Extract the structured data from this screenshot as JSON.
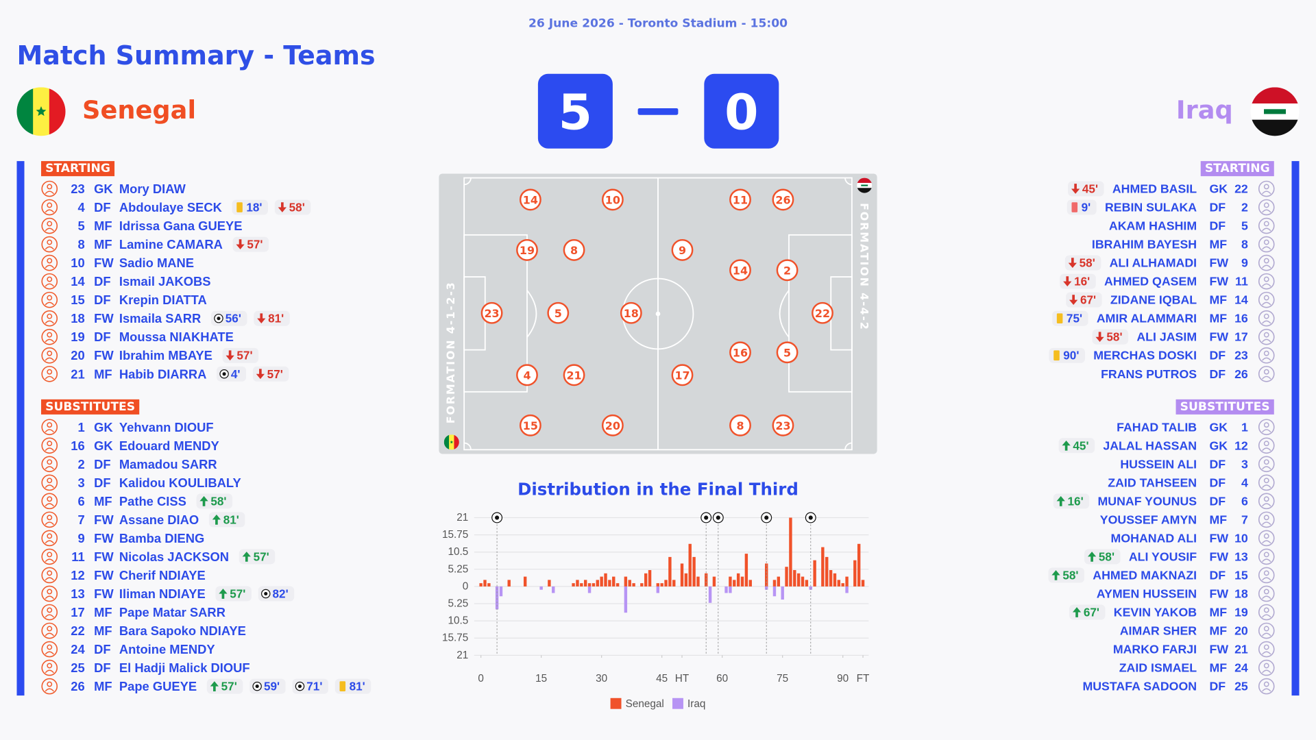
{
  "header": {
    "date_venue": "26 June 2026 - Toronto Stadium - 15:00",
    "title": "Match Summary - Teams"
  },
  "teams": [
    {
      "name": "Senegal",
      "score": "5",
      "formation": "FORMATION 4-1-2-3",
      "starting_label": "STARTING",
      "substitutes_label": "SUBSTITUTES",
      "starting": [
        {
          "number": 23,
          "position": "GK",
          "name": "Mory DIAW"
        },
        {
          "number": 4,
          "position": "DF",
          "name": "Abdoulaye SECK",
          "events": [
            {
              "type": "yellow",
              "label": "18'"
            },
            {
              "type": "off",
              "label": "58'"
            }
          ]
        },
        {
          "number": 5,
          "position": "MF",
          "name": "Idrissa Gana GUEYE"
        },
        {
          "number": 8,
          "position": "MF",
          "name": "Lamine CAMARA",
          "events": [
            {
              "type": "off",
              "label": "57'"
            }
          ]
        },
        {
          "number": 10,
          "position": "FW",
          "name": "Sadio MANE"
        },
        {
          "number": 14,
          "position": "DF",
          "name": "Ismail JAKOBS"
        },
        {
          "number": 15,
          "position": "DF",
          "name": "Krepin DIATTA"
        },
        {
          "number": 18,
          "position": "FW",
          "name": "Ismaila SARR",
          "events": [
            {
              "type": "goal",
              "label": "56'"
            },
            {
              "type": "off",
              "label": "81'"
            }
          ]
        },
        {
          "number": 19,
          "position": "DF",
          "name": "Moussa NIAKHATE"
        },
        {
          "number": 20,
          "position": "FW",
          "name": "Ibrahim MBAYE",
          "events": [
            {
              "type": "off",
              "label": "57'"
            }
          ]
        },
        {
          "number": 21,
          "position": "MF",
          "name": "Habib DIARRA",
          "events": [
            {
              "type": "goal",
              "label": "4'"
            },
            {
              "type": "off",
              "label": "57'"
            }
          ]
        }
      ],
      "substitutes": [
        {
          "number": 1,
          "position": "GK",
          "name": "Yehvann DIOUF"
        },
        {
          "number": 16,
          "position": "GK",
          "name": "Edouard MENDY"
        },
        {
          "number": 2,
          "position": "DF",
          "name": "Mamadou SARR"
        },
        {
          "number": 3,
          "position": "DF",
          "name": "Kalidou KOULIBALY"
        },
        {
          "number": 6,
          "position": "MF",
          "name": "Pathe CISS",
          "events": [
            {
              "type": "on",
              "label": "58'"
            }
          ]
        },
        {
          "number": 7,
          "position": "FW",
          "name": "Assane DIAO",
          "events": [
            {
              "type": "on",
              "label": "81'"
            }
          ]
        },
        {
          "number": 9,
          "position": "FW",
          "name": "Bamba DIENG"
        },
        {
          "number": 11,
          "position": "FW",
          "name": "Nicolas JACKSON",
          "events": [
            {
              "type": "on",
              "label": "57'"
            }
          ]
        },
        {
          "number": 12,
          "position": "FW",
          "name": "Cherif NDIAYE"
        },
        {
          "number": 13,
          "position": "FW",
          "name": "Iliman NDIAYE",
          "events": [
            {
              "type": "on",
              "label": "57'"
            },
            {
              "type": "goal",
              "label": "82'"
            }
          ]
        },
        {
          "number": 17,
          "position": "MF",
          "name": "Pape Matar SARR"
        },
        {
          "number": 22,
          "position": "MF",
          "name": "Bara Sapoko NDIAYE"
        },
        {
          "number": 24,
          "position": "DF",
          "name": "Antoine MENDY"
        },
        {
          "number": 25,
          "position": "DF",
          "name": "El Hadji Malick DIOUF"
        },
        {
          "number": 26,
          "position": "MF",
          "name": "Pape GUEYE",
          "events": [
            {
              "type": "on",
              "label": "57'"
            },
            {
              "type": "goal",
              "label": "59'"
            },
            {
              "type": "goal",
              "label": "71'"
            },
            {
              "type": "yellow",
              "label": "81'"
            }
          ]
        }
      ],
      "pitch": [
        14,
        10,
        19,
        8,
        23,
        5,
        18,
        4,
        21,
        15,
        20
      ]
    },
    {
      "name": "Iraq",
      "score": "0",
      "formation": "FORMATION 4-4-2",
      "starting_label": "STARTING",
      "substitutes_label": "SUBSTITUTES",
      "starting": [
        {
          "number": 22,
          "position": "GK",
          "name": "AHMED BASIL",
          "events": [
            {
              "type": "off",
              "label": "45'"
            }
          ]
        },
        {
          "number": 2,
          "position": "DF",
          "name": "REBIN SULAKA",
          "events": [
            {
              "type": "red",
              "label": "9'"
            }
          ]
        },
        {
          "number": 5,
          "position": "DF",
          "name": "AKAM HASHIM"
        },
        {
          "number": 8,
          "position": "MF",
          "name": "IBRAHIM BAYESH"
        },
        {
          "number": 9,
          "position": "FW",
          "name": "ALI ALHAMADI",
          "events": [
            {
              "type": "off",
              "label": "58'"
            }
          ]
        },
        {
          "number": 11,
          "position": "FW",
          "name": "AHMED QASEM",
          "events": [
            {
              "type": "off",
              "label": "16'"
            }
          ]
        },
        {
          "number": 14,
          "position": "MF",
          "name": "ZIDANE IQBAL",
          "events": [
            {
              "type": "off",
              "label": "67'"
            }
          ]
        },
        {
          "number": 16,
          "position": "MF",
          "name": "AMIR ALAMMARI",
          "events": [
            {
              "type": "yellow",
              "label": "75'"
            }
          ]
        },
        {
          "number": 17,
          "position": "FW",
          "name": "ALI JASIM",
          "events": [
            {
              "type": "off",
              "label": "58'"
            }
          ]
        },
        {
          "number": 23,
          "position": "DF",
          "name": "MERCHAS DOSKI",
          "events": [
            {
              "type": "yellow",
              "label": "90'"
            }
          ]
        },
        {
          "number": 26,
          "position": "DF",
          "name": "FRANS PUTROS"
        }
      ],
      "substitutes": [
        {
          "number": 1,
          "position": "GK",
          "name": "FAHAD TALIB"
        },
        {
          "number": 12,
          "position": "GK",
          "name": "JALAL HASSAN",
          "events": [
            {
              "type": "on",
              "label": "45'"
            }
          ]
        },
        {
          "number": 3,
          "position": "DF",
          "name": "HUSSEIN ALI"
        },
        {
          "number": 4,
          "position": "DF",
          "name": "ZAID TAHSEEN"
        },
        {
          "number": 6,
          "position": "DF",
          "name": "MUNAF YOUNUS",
          "events": [
            {
              "type": "on",
              "label": "16'"
            }
          ]
        },
        {
          "number": 7,
          "position": "MF",
          "name": "YOUSSEF AMYN"
        },
        {
          "number": 10,
          "position": "FW",
          "name": "MOHANAD ALI"
        },
        {
          "number": 13,
          "position": "FW",
          "name": "ALI YOUSIF",
          "events": [
            {
              "type": "on",
              "label": "58'"
            }
          ]
        },
        {
          "number": 15,
          "position": "DF",
          "name": "AHMED MAKNAZI",
          "events": [
            {
              "type": "on",
              "label": "58'"
            }
          ]
        },
        {
          "number": 18,
          "position": "FW",
          "name": "AYMEN HUSSEIN"
        },
        {
          "number": 19,
          "position": "MF",
          "name": "KEVIN YAKOB",
          "events": [
            {
              "type": "on",
              "label": "67'"
            }
          ]
        },
        {
          "number": 20,
          "position": "MF",
          "name": "AIMAR SHER"
        },
        {
          "number": 21,
          "position": "FW",
          "name": "MARKO FARJI"
        },
        {
          "number": 24,
          "position": "MF",
          "name": "ZAID ISMAEL"
        },
        {
          "number": 25,
          "position": "DF",
          "name": "MUSTAFA SADOON"
        }
      ],
      "pitch": [
        11,
        26,
        9,
        14,
        2,
        22,
        16,
        5,
        17,
        8,
        23
      ]
    }
  ],
  "chart_data": {
    "type": "bar",
    "title": "Distribution in the Final Third",
    "xlim": [
      0,
      96
    ],
    "xticks": [
      0,
      15,
      30,
      45,
      {
        "value": 50,
        "label": "HT"
      },
      60,
      75,
      90,
      {
        "value": 95,
        "label": "FT"
      }
    ],
    "ylim": [
      -21,
      21
    ],
    "yticks": [
      21,
      15.75,
      10.5,
      5.25,
      0,
      {
        "value": -5.25,
        "label": "5.25"
      },
      {
        "value": -10.5,
        "label": "10.5"
      },
      {
        "value": -15.75,
        "label": "15.75"
      },
      {
        "value": -21,
        "label": "21"
      }
    ],
    "grid": true,
    "legend": "bottom",
    "goals": [
      4,
      56,
      59,
      71,
      82
    ],
    "series": [
      {
        "name": "Senegal",
        "color": "#f0522a",
        "x": [
          0,
          1,
          2,
          7,
          11,
          17,
          23,
          24,
          25,
          26,
          27,
          28,
          29,
          30,
          31,
          32,
          33,
          34,
          36,
          37,
          38,
          40,
          41,
          42,
          44,
          45,
          46,
          47,
          48,
          50,
          51,
          52,
          53,
          54,
          56,
          58,
          62,
          63,
          64,
          65,
          66,
          67,
          71,
          73,
          74,
          76,
          77,
          78,
          79,
          80,
          81,
          83,
          85,
          86,
          87,
          88,
          89,
          90,
          91,
          93,
          94,
          95
        ],
        "values": [
          1,
          2,
          1,
          2,
          3,
          2,
          1,
          2,
          1,
          2,
          1,
          1,
          2,
          3,
          4,
          2,
          3,
          1,
          3,
          2,
          1,
          1,
          4,
          5,
          1,
          1,
          2,
          9,
          2,
          7,
          4,
          13,
          9,
          3,
          4,
          3,
          3,
          2,
          4,
          3,
          10,
          2,
          7,
          2,
          3,
          6,
          21,
          5,
          4,
          3,
          2,
          8,
          12,
          9,
          5,
          4,
          2,
          1,
          3,
          8,
          13,
          2
        ]
      },
      {
        "name": "Iraq",
        "color": "#b794f4",
        "x": [
          4,
          5,
          15,
          18,
          27,
          36,
          44,
          57,
          61,
          62,
          71,
          73,
          75,
          82,
          91
        ],
        "values": [
          -7,
          -3,
          -1,
          -2,
          -2,
          -8,
          -2,
          -5,
          -2,
          -2,
          -1,
          -3,
          -4,
          -1,
          -2
        ]
      }
    ]
  }
}
